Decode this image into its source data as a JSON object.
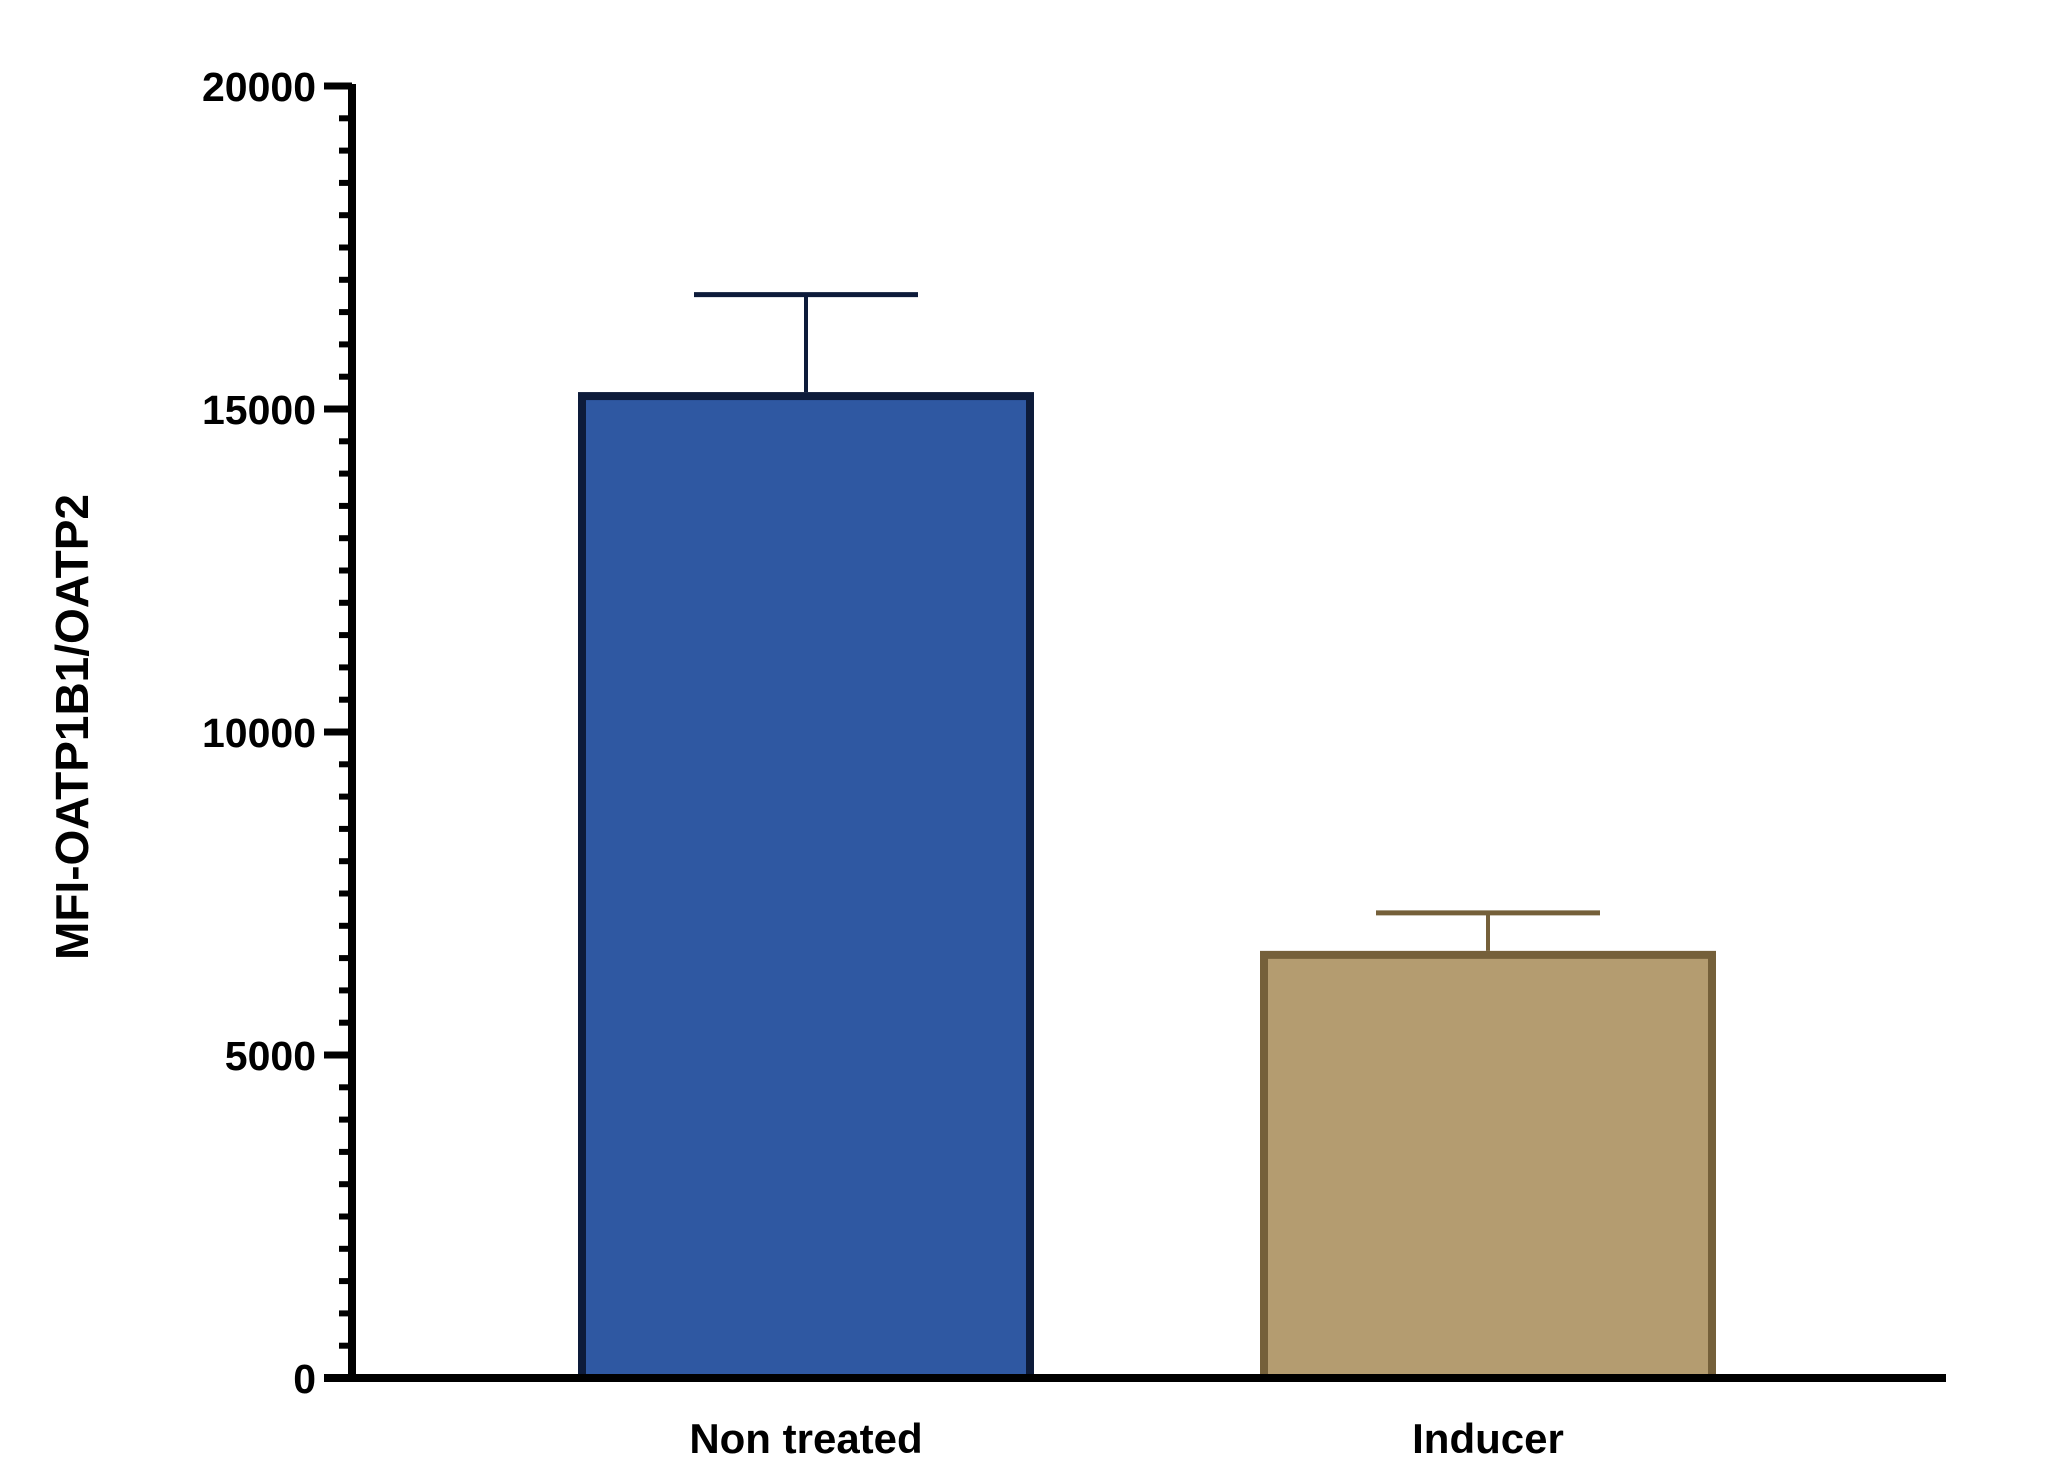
{
  "chart_data": {
    "type": "bar",
    "title": "",
    "xlabel": "",
    "ylabel": "MFI-OATP1B1/OATP2",
    "categories": [
      "Non treated",
      "Inducer"
    ],
    "values": [
      15200,
      6550
    ],
    "errors": [
      1570,
      650
    ],
    "ylim": [
      0,
      20000
    ],
    "yticks": [
      0,
      5000,
      10000,
      15000,
      20000
    ],
    "ytick_labels": [
      "0",
      "5000",
      "10000",
      "15000",
      "20000"
    ],
    "minor_ticks_per_major": 10,
    "grid": false,
    "legend": "none",
    "colors": {
      "fills": [
        "#2f58a2",
        "#b49c70"
      ],
      "edges": [
        "#0d1b3a",
        "#75603a"
      ],
      "axis": "#000000"
    }
  }
}
